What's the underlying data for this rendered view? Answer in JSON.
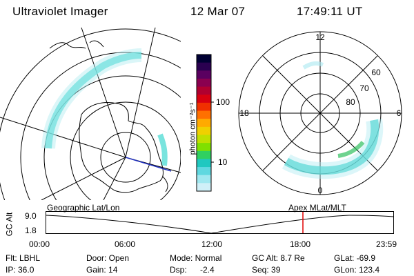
{
  "header": {
    "instrument": "Ultraviolet Imager",
    "date": "12 Mar 07",
    "time": "17:49:11 UT"
  },
  "colorbar": {
    "unit_label": "photon cm⁻²s⁻¹",
    "ticks": [
      "100",
      "10"
    ],
    "colors": [
      "#000033",
      "#2a0050",
      "#5a0060",
      "#8a0050",
      "#b00030",
      "#d80010",
      "#f03000",
      "#ff7000",
      "#ffaa00",
      "#f0d000",
      "#c0e000",
      "#80e000",
      "#30d060",
      "#20c8c0",
      "#60d8e0",
      "#a0e8f0",
      "#d0f0f8"
    ]
  },
  "left_map": {
    "title": "Geographic Lat/Lon"
  },
  "right_map": {
    "title": "Apex MLat/MLT",
    "mlat_labels": [
      "60",
      "70",
      "80"
    ],
    "mlt_labels": {
      "top": "12",
      "left": "18",
      "right": "6",
      "bottom": "0"
    }
  },
  "altitude_plot": {
    "ylabel": "GC Alt",
    "yticks": [
      "9.0",
      "1.8"
    ],
    "xticks": [
      "00:00",
      "06:00",
      "12:00",
      "18:00",
      "23:59"
    ],
    "marker_color": "#e00000"
  },
  "footer": {
    "row1": {
      "flt": "Flt: LBHL",
      "door": "Door: Open",
      "mode": "Mode: Normal",
      "gcalt": "GC Alt: 8.7 Re",
      "glat": "GLat: -69.9"
    },
    "row2": {
      "ip": "IP: 36.0",
      "gain": "Gain: 14",
      "dsp_label": "Dsp:",
      "dsp_value": "-2.4",
      "seq": "Seq: 39",
      "glon": "GLon: 123.4"
    }
  }
}
